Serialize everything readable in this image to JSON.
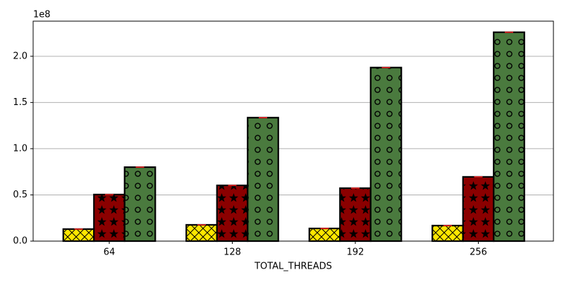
{
  "chart_data": {
    "type": "bar",
    "x_label": "TOTAL_THREADS",
    "y_offset_label": "1e8",
    "categories": [
      "64",
      "128",
      "192",
      "256"
    ],
    "series": [
      {
        "color": "#ffe600",
        "hatch": "x",
        "values": [
          0.13,
          0.176,
          0.137,
          0.168
        ],
        "errors": [
          0.002,
          0.002,
          0.002,
          0.002
        ]
      },
      {
        "color": "#8b0000",
        "hatch": "*",
        "values": [
          0.504,
          0.603,
          0.573,
          0.695
        ],
        "errors": [
          0.002,
          0.002,
          0.002,
          0.002
        ]
      },
      {
        "color": "#4a7a3e",
        "hatch": "o",
        "values": [
          0.8,
          1.336,
          1.878,
          2.26
        ],
        "errors": [
          0.002,
          0.002,
          0.002,
          0.002
        ]
      }
    ],
    "error_color": "#e02020",
    "ylim": [
      0,
      2.38
    ],
    "yticks": [
      {
        "value": 0,
        "label": "0.0"
      },
      {
        "value": 0.5,
        "label": "0.5"
      },
      {
        "value": 1.0,
        "label": "1.0"
      },
      {
        "value": 1.5,
        "label": "1.5"
      },
      {
        "value": 2.0,
        "label": "2.0"
      }
    ],
    "grid": true
  }
}
